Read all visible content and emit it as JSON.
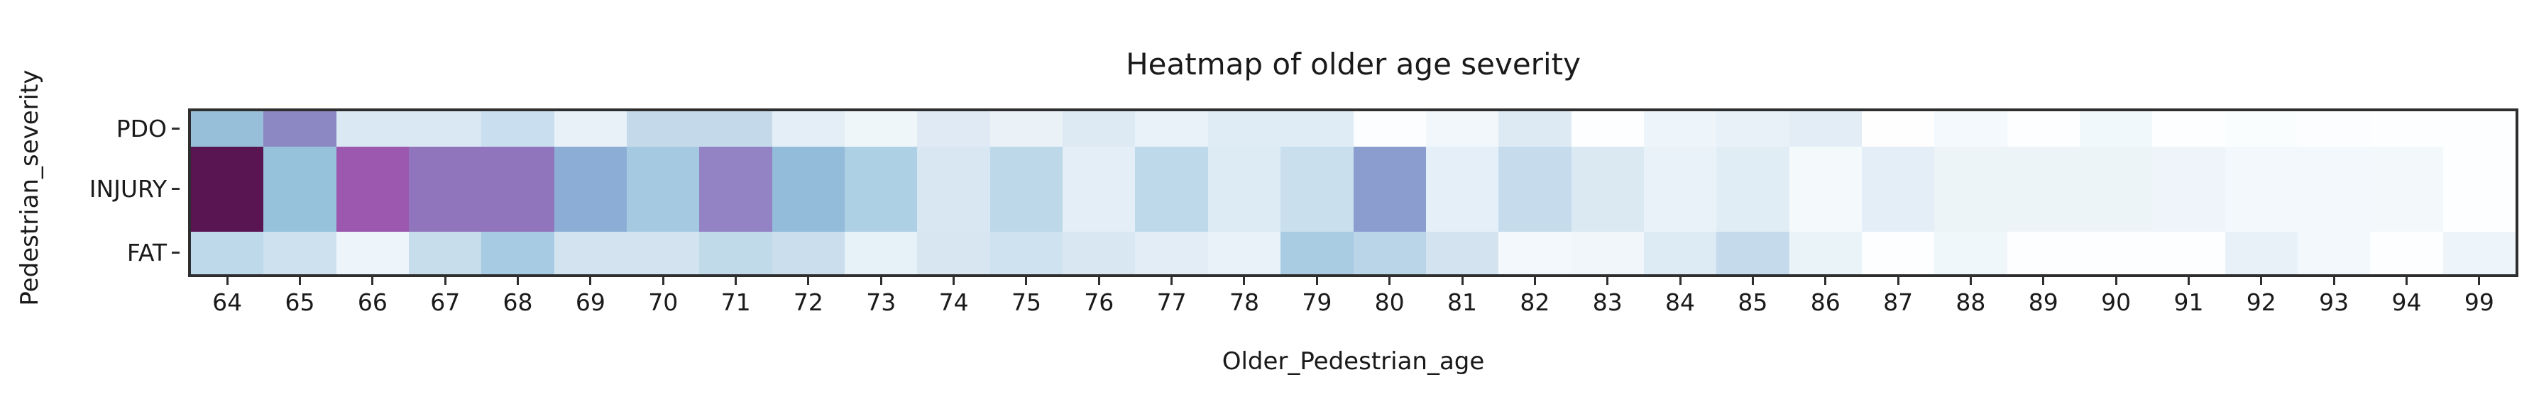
{
  "title": "Heatmap of older age severity",
  "colors": {
    "background": "#ffffff",
    "spine": "#2e2e2e",
    "text": "#1a1a1a",
    "colormap_low": "#ffffff",
    "colormap_mid": "#96c2dc",
    "colormap_high": "#581551"
  },
  "chart_data": {
    "type": "heatmap",
    "title": "Heatmap of older age severity",
    "xlabel": "Older_Pedestrian_age",
    "ylabel": "Pedestrian_severity",
    "x_categories": [
      "64",
      "65",
      "66",
      "67",
      "68",
      "69",
      "70",
      "71",
      "72",
      "73",
      "74",
      "75",
      "76",
      "77",
      "78",
      "79",
      "80",
      "81",
      "82",
      "83",
      "84",
      "85",
      "86",
      "87",
      "88",
      "89",
      "90",
      "91",
      "92",
      "93",
      "94",
      "99"
    ],
    "y_categories": [
      "PDO",
      "INJURY",
      "FAT"
    ],
    "colormap": "BuPu-like: white (low) through light blue to dark purple (high)",
    "legend": "none",
    "grid": false,
    "row_height_fractions": [
      0.217,
      0.522,
      0.261
    ],
    "cell_colors": [
      [
        "#98bfd9",
        "#8c88c3",
        "#d9e8f2",
        "#d9e8f2",
        "#c9deee",
        "#e7f1f7",
        "#c4daea",
        "#c4daea",
        "#e3eef6",
        "#eff6fa",
        "#dfeaf4",
        "#eaf2f8",
        "#dde9f3",
        "#e9f2f8",
        "#dfecf5",
        "#dfecf5",
        "#fbfdfe",
        "#f1f7fb",
        "#ddeaf4",
        "#fdfeff",
        "#eef5fa",
        "#e8f1f8",
        "#e2edf6",
        "#fefeff",
        "#f3f9fc",
        "#fdfeff",
        "#f1f8fb",
        "#fdfeff",
        "#fafdfe",
        "#fcfdfe",
        "#fdfeff",
        "#fdfeff"
      ],
      [
        "#581551",
        "#96c2dc",
        "#9c57ae",
        "#9175bc",
        "#9175bc",
        "#8caed6",
        "#a5c9e0",
        "#9383c4",
        "#92bcd9",
        "#aed0e4",
        "#d8e7f2",
        "#bdd8e9",
        "#e3eef6",
        "#bed9e9",
        "#dcebf4",
        "#c9dfee",
        "#8b9cce",
        "#e5eff7",
        "#c6dcec",
        "#dbe9f3",
        "#e9f2f8",
        "#e1edf5",
        "#f4fafc",
        "#e4eef6",
        "#edf4f8",
        "#edf4f8",
        "#edf4f8",
        "#eef4f9",
        "#f2f8fb",
        "#f2f8fb",
        "#f3f9fb",
        "#fdfeff"
      ],
      [
        "#bed9ea",
        "#cde1ee",
        "#eef5fa",
        "#c8ddec",
        "#a7cbe2",
        "#d3e4f0",
        "#d3e4f0",
        "#c0dae9",
        "#cadeed",
        "#e7f1f8",
        "#d7e6f1",
        "#cfe2ef",
        "#d8e7f2",
        "#e2edf5",
        "#e8f2f8",
        "#a9cce3",
        "#bad5e8",
        "#d3e3ef",
        "#f2f8fb",
        "#f0f6fa",
        "#dcebf4",
        "#c5dbeb",
        "#eaf3f8",
        "#fdfeff",
        "#f0f7fa",
        "#fdfeff",
        "#fdfeff",
        "#fdfeff",
        "#e9f1f8",
        "#f2f8fb",
        "#fdfeff",
        "#eef5fa"
      ]
    ]
  }
}
